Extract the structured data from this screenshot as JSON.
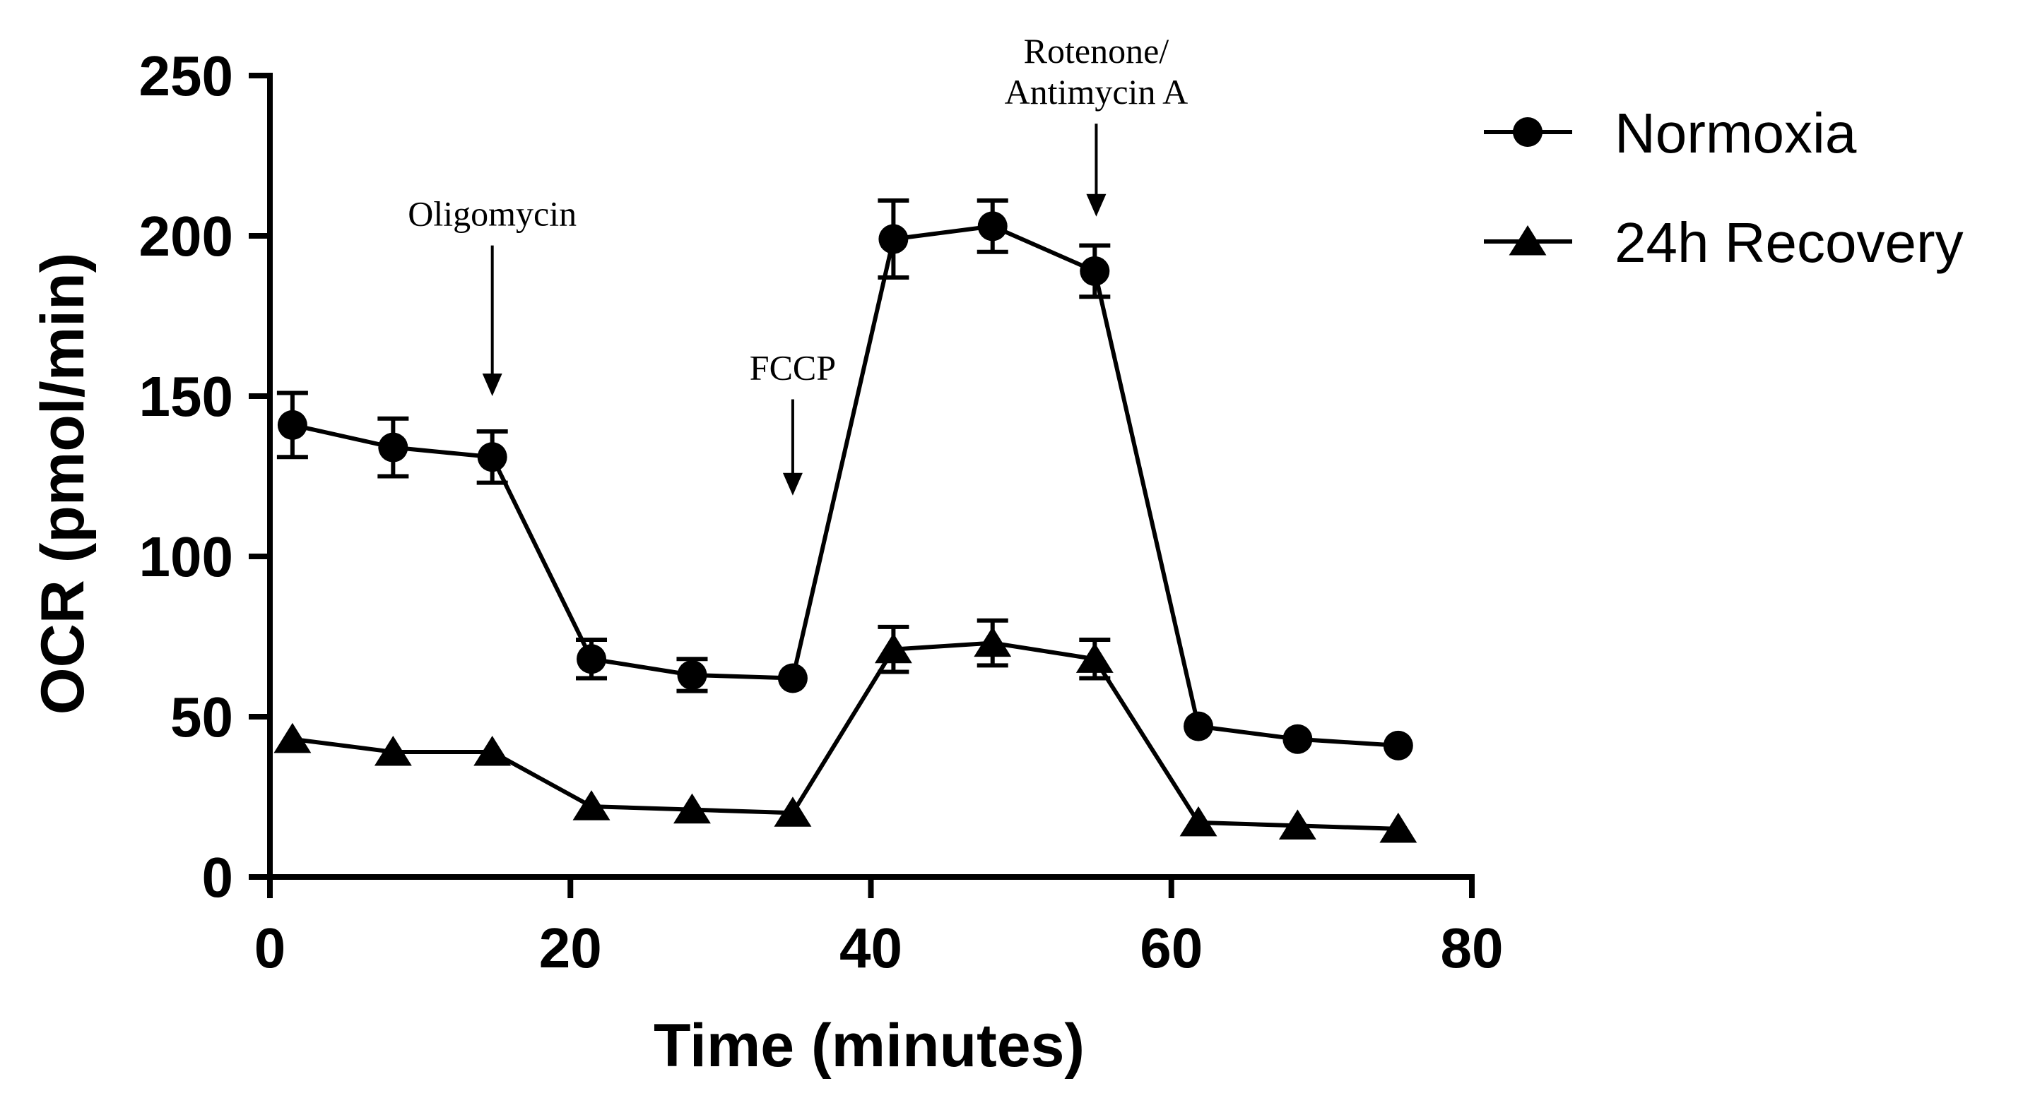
{
  "chart_data": {
    "type": "line",
    "title": "",
    "xlabel": "Time (minutes)",
    "ylabel": "OCR (pmol/min)",
    "xlim": [
      0,
      80
    ],
    "ylim": [
      0,
      250
    ],
    "xticks": [
      "0",
      "20",
      "40",
      "60",
      "80"
    ],
    "yticks": [
      "0",
      "50",
      "100",
      "150",
      "200",
      "250"
    ],
    "grid": false,
    "legend_position": "top-right",
    "x": [
      1.5,
      8.2,
      14.8,
      21.4,
      28.1,
      34.8,
      41.5,
      48.1,
      54.9,
      61.8,
      68.4,
      75.1
    ],
    "series": [
      {
        "name": "Normoxia",
        "marker": "circle",
        "values": [
          141,
          134,
          131,
          68,
          63,
          62,
          199,
          203,
          189,
          47,
          43,
          41
        ],
        "errors": [
          10,
          9,
          8,
          6,
          5,
          0,
          12,
          8,
          8,
          0,
          0,
          0
        ]
      },
      {
        "name": "24h Recovery",
        "marker": "triangle",
        "values": [
          43,
          39,
          39,
          22,
          21,
          20,
          71,
          73,
          68,
          17,
          16,
          15
        ],
        "errors": [
          0,
          0,
          0,
          0,
          0,
          0,
          7,
          7,
          6,
          0,
          0,
          0
        ]
      }
    ],
    "annotations": [
      {
        "lines": [
          "Oligomycin"
        ],
        "x": 14.8,
        "arrow_top": 197,
        "arrow_bottom": 150
      },
      {
        "lines": [
          "FCCP"
        ],
        "x": 34.8,
        "arrow_top": 149,
        "arrow_bottom": 119
      },
      {
        "lines": [
          "Rotenone/",
          "Antimycin A"
        ],
        "x": 55,
        "arrow_top": 235,
        "arrow_bottom": 206
      }
    ]
  }
}
